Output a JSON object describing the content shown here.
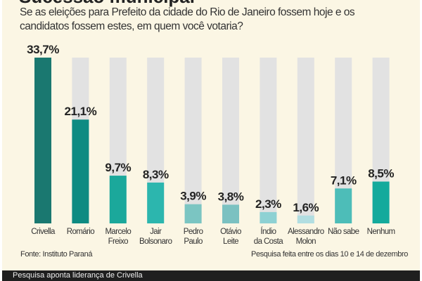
{
  "title": "Sucessão municipal",
  "question": "Se as eleições para Prefeito da cidade do Rio de Janeiro fossem hoje e os candidatos fossem estes, em quem você votaria?",
  "source": "Fonte: Instituto Paraná",
  "note": "Pesquisa feita entre os dias 10 e 14 de dezembro",
  "caption": "Pesquisa aponta liderança de Crivella",
  "colors": {
    "background": "#fbf6e4",
    "track": "#e2e2e2",
    "caption_bar": "#1f1f1f"
  },
  "chart_data": {
    "type": "bar",
    "categories": [
      "Crivella",
      "Romário",
      "Marcelo Freixo",
      "Jair Bolsonaro",
      "Pedro Paulo",
      "Otávio Leite",
      "Índio da Costa",
      "Alessandro Molon",
      "Não sabe",
      "Nenhum"
    ],
    "category_lines": [
      [
        "Crivella"
      ],
      [
        "Romário"
      ],
      [
        "Marcelo",
        "Freixo"
      ],
      [
        "Jair",
        "Bolsonaro"
      ],
      [
        "Pedro",
        "Paulo"
      ],
      [
        "Otávio",
        "Leite"
      ],
      [
        "Índio",
        "da Costa"
      ],
      [
        "Alessandro",
        "Molon"
      ],
      [
        "Não sabe"
      ],
      [
        "Nenhum"
      ]
    ],
    "values": [
      33.7,
      21.1,
      9.7,
      8.3,
      3.9,
      3.8,
      2.3,
      1.6,
      7.1,
      8.5
    ],
    "labels": [
      "33,7%",
      "21,1%",
      "9,7%",
      "8,3%",
      "3,9%",
      "3,8%",
      "2,3%",
      "1,6%",
      "7,1%",
      "8,5%"
    ],
    "bar_colors": [
      "#1a7870",
      "#0e8b82",
      "#1ba89b",
      "#2cb6ae",
      "#7bc5c2",
      "#7bc1c1",
      "#8ed1d3",
      "#b2dee1",
      "#4dbdb8",
      "#14aa9c"
    ],
    "ylim": [
      0,
      33.7
    ],
    "grid": false
  }
}
